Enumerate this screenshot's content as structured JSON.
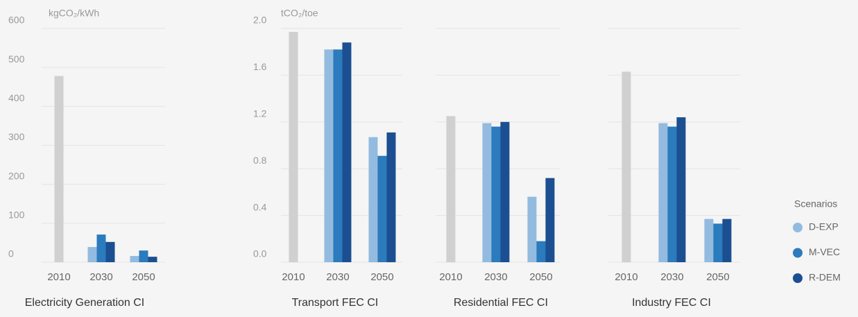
{
  "chart_data": [
    {
      "type": "bar",
      "title": "Electricity Generation CI",
      "unit": "kgCO₂/kWh",
      "categories": [
        "2010",
        "2030",
        "2050"
      ],
      "baseline_color": "#d0d0d0",
      "baseline_values": [
        478,
        null,
        null
      ],
      "series": [
        {
          "name": "D-EXP",
          "color": "#93bbe0",
          "values": [
            null,
            39,
            16
          ]
        },
        {
          "name": "M-VEC",
          "color": "#2b7bbd",
          "values": [
            null,
            71,
            30
          ]
        },
        {
          "name": "R-DEM",
          "color": "#1b4f91",
          "values": [
            null,
            52,
            14
          ]
        }
      ],
      "ylim": [
        0,
        600
      ],
      "yticks": [
        0,
        100,
        200,
        300,
        400,
        500,
        600
      ],
      "grid": true,
      "tick_labels": true
    },
    {
      "type": "bar",
      "title": "Transport FEC CI",
      "unit": "tCO₂/toe",
      "categories": [
        "2010",
        "2030",
        "2050"
      ],
      "baseline_color": "#d0d0d0",
      "baseline_values": [
        1.97,
        null,
        null
      ],
      "series": [
        {
          "name": "D-EXP",
          "color": "#93bbe0",
          "values": [
            null,
            1.82,
            1.07
          ]
        },
        {
          "name": "M-VEC",
          "color": "#2b7bbd",
          "values": [
            null,
            1.82,
            0.91
          ]
        },
        {
          "name": "R-DEM",
          "color": "#1b4f91",
          "values": [
            null,
            1.88,
            1.11
          ]
        }
      ],
      "ylim": [
        0,
        2
      ],
      "yticks": [
        {
          "value": 0,
          "label": "0.0"
        },
        0.4,
        0.8,
        1.2,
        1.6,
        {
          "value": 2,
          "label": "2.0"
        }
      ],
      "grid": true,
      "tick_labels": true
    },
    {
      "type": "bar",
      "title": "Residential FEC CI",
      "categories": [
        "2010",
        "2030",
        "2050"
      ],
      "baseline_color": "#d0d0d0",
      "baseline_values": [
        1.25,
        null,
        null
      ],
      "series": [
        {
          "name": "D-EXP",
          "color": "#93bbe0",
          "values": [
            null,
            1.19,
            0.56
          ]
        },
        {
          "name": "M-VEC",
          "color": "#2b7bbd",
          "values": [
            null,
            1.16,
            0.18
          ]
        },
        {
          "name": "R-DEM",
          "color": "#1b4f91",
          "values": [
            null,
            1.2,
            0.72
          ]
        }
      ],
      "ylim": [
        0,
        2
      ],
      "yticks": [
        0,
        0.4,
        0.8,
        1.2,
        1.6,
        2
      ],
      "grid": true,
      "tick_labels": false
    },
    {
      "type": "bar",
      "title": "Industry FEC CI",
      "categories": [
        "2010",
        "2030",
        "2050"
      ],
      "baseline_color": "#d0d0d0",
      "baseline_values": [
        1.63,
        null,
        null
      ],
      "series": [
        {
          "name": "D-EXP",
          "color": "#93bbe0",
          "values": [
            null,
            1.19,
            0.37
          ]
        },
        {
          "name": "M-VEC",
          "color": "#2b7bbd",
          "values": [
            null,
            1.16,
            0.33
          ]
        },
        {
          "name": "R-DEM",
          "color": "#1b4f91",
          "values": [
            null,
            1.24,
            0.37
          ]
        }
      ],
      "ylim": [
        0,
        2
      ],
      "yticks": [
        0,
        0.4,
        0.8,
        1.2,
        1.6,
        2
      ],
      "grid": true,
      "tick_labels": false,
      "legend_title": "Scenarios"
    }
  ]
}
